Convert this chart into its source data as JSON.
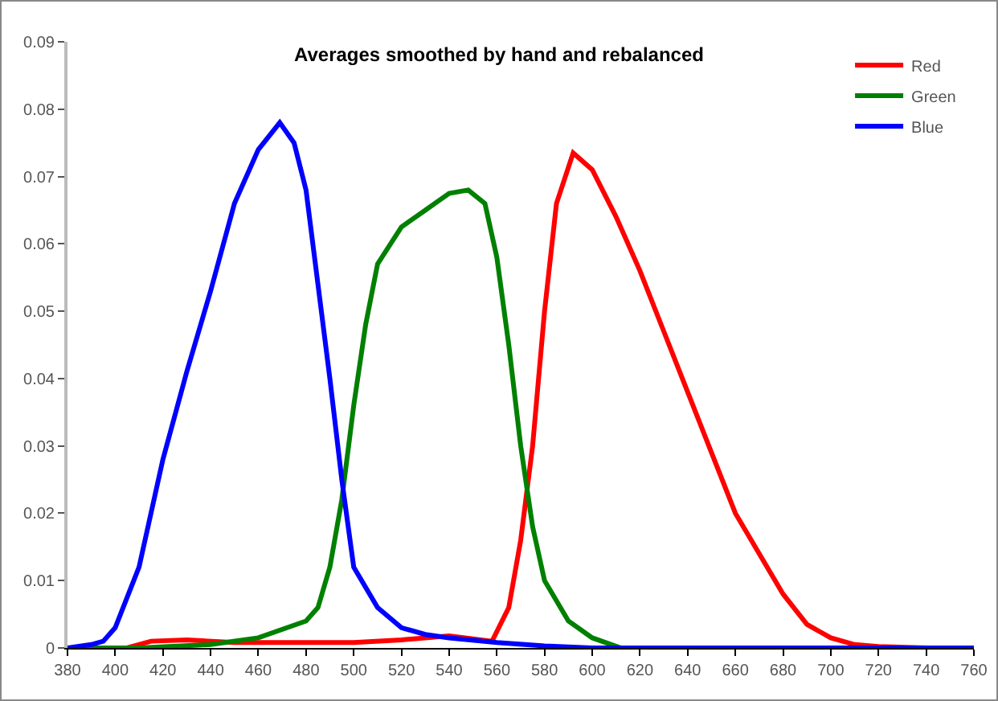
{
  "chart_data": {
    "type": "line",
    "title": "Averages smoothed by hand and rebalanced",
    "xlim": [
      380,
      760
    ],
    "xticks": [
      380,
      400,
      420,
      440,
      460,
      480,
      500,
      520,
      540,
      560,
      580,
      600,
      620,
      640,
      660,
      680,
      700,
      720,
      740,
      760
    ],
    "ylim": [
      0,
      0.09
    ],
    "yticks": [
      0,
      0.01,
      0.02,
      0.03,
      0.04,
      0.05,
      0.06,
      0.07,
      0.08,
      0.09
    ],
    "grid": false,
    "legend": "top right",
    "marker": "none",
    "line_style": "solid",
    "series": [
      {
        "name": "Red",
        "color": "#ff0000",
        "x": [
          380,
          405,
          415,
          430,
          450,
          470,
          500,
          520,
          540,
          558,
          565,
          570,
          575,
          580,
          585,
          592,
          600,
          610,
          620,
          630,
          640,
          650,
          660,
          670,
          680,
          690,
          700,
          710,
          720,
          740,
          760
        ],
        "values": [
          0,
          0,
          0.001,
          0.0012,
          0.0008,
          0.0008,
          0.0008,
          0.0012,
          0.0018,
          0.001,
          0.006,
          0.016,
          0.03,
          0.05,
          0.066,
          0.0735,
          0.071,
          0.064,
          0.056,
          0.047,
          0.038,
          0.029,
          0.02,
          0.014,
          0.008,
          0.0035,
          0.0015,
          0.0005,
          0.0002,
          0,
          0
        ]
      },
      {
        "name": "Green",
        "color": "#008000",
        "x": [
          380,
          410,
          440,
          460,
          480,
          485,
          490,
          495,
          500,
          505,
          510,
          520,
          530,
          540,
          548,
          555,
          560,
          565,
          570,
          575,
          580,
          590,
          600,
          612,
          760
        ],
        "values": [
          0,
          0,
          0.0005,
          0.0015,
          0.004,
          0.006,
          0.012,
          0.022,
          0.036,
          0.048,
          0.057,
          0.0625,
          0.065,
          0.0675,
          0.068,
          0.066,
          0.058,
          0.045,
          0.03,
          0.018,
          0.01,
          0.004,
          0.0015,
          0,
          0
        ]
      },
      {
        "name": "Blue",
        "color": "#0000ff",
        "x": [
          380,
          390,
          395,
          400,
          410,
          420,
          430,
          440,
          450,
          460,
          469,
          475,
          480,
          490,
          495,
          500,
          510,
          520,
          530,
          540,
          560,
          580,
          600,
          760
        ],
        "values": [
          0,
          0.0005,
          0.001,
          0.003,
          0.012,
          0.028,
          0.041,
          0.053,
          0.066,
          0.074,
          0.078,
          0.075,
          0.068,
          0.04,
          0.025,
          0.012,
          0.006,
          0.003,
          0.002,
          0.0015,
          0.0008,
          0.0003,
          0,
          0
        ]
      }
    ]
  }
}
